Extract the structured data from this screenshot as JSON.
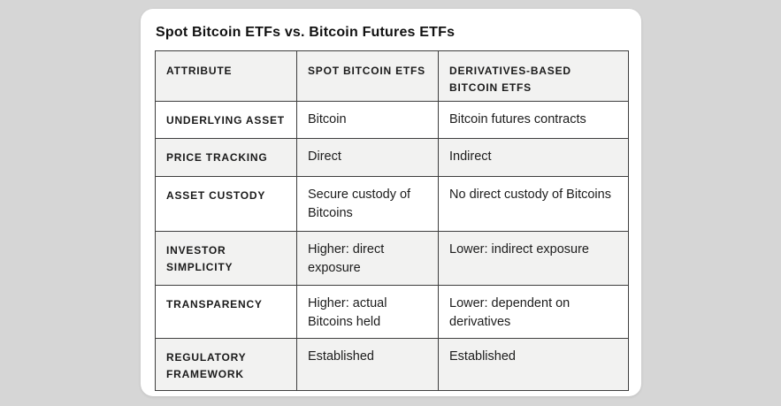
{
  "title": "Spot Bitcoin ETFs vs. Bitcoin Futures ETFs",
  "table": {
    "headers": [
      "ATTRIBUTE",
      "SPOT BITCOIN ETFS",
      "DERIVATIVES-BASED BITCOIN ETFS"
    ],
    "rows": [
      [
        "UNDERLYING ASSET",
        "Bitcoin",
        "Bitcoin futures contracts"
      ],
      [
        "PRICE TRACKING",
        "Direct",
        "Indirect"
      ],
      [
        "ASSET CUSTODY",
        "Secure custody of Bitcoins",
        "No direct custody of Bitcoins"
      ],
      [
        "INVESTOR SIMPLICITY",
        "Higher: direct exposure",
        "Lower: indirect exposure"
      ],
      [
        "TRANSPARENCY",
        "Higher: actual Bitcoins held",
        "Lower: dependent on derivatives"
      ],
      [
        "REGULATORY FRAMEWORK",
        "Established",
        "Established"
      ]
    ]
  },
  "colors": {
    "page_background": "#d6d6d6",
    "card_background": "#ffffff",
    "row_alt_background": "#f2f2f1",
    "border": "#3e3e3e",
    "text": "#1a1a1a"
  },
  "chart_data": {
    "type": "table",
    "title": "Spot Bitcoin ETFs vs. Bitcoin Futures ETFs",
    "columns": [
      "ATTRIBUTE",
      "SPOT BITCOIN ETFS",
      "DERIVATIVES-BASED BITCOIN ETFS"
    ],
    "rows": [
      {
        "attribute": "UNDERLYING ASSET",
        "spot_bitcoin_etfs": "Bitcoin",
        "derivatives_based_bitcoin_etfs": "Bitcoin futures contracts"
      },
      {
        "attribute": "PRICE TRACKING",
        "spot_bitcoin_etfs": "Direct",
        "derivatives_based_bitcoin_etfs": "Indirect"
      },
      {
        "attribute": "ASSET CUSTODY",
        "spot_bitcoin_etfs": "Secure custody of Bitcoins",
        "derivatives_based_bitcoin_etfs": "No direct custody of Bitcoins"
      },
      {
        "attribute": "INVESTOR SIMPLICITY",
        "spot_bitcoin_etfs": "Higher: direct exposure",
        "derivatives_based_bitcoin_etfs": "Lower: indirect exposure"
      },
      {
        "attribute": "TRANSPARENCY",
        "spot_bitcoin_etfs": "Higher: actual Bitcoins held",
        "derivatives_based_bitcoin_etfs": "Lower: dependent on derivatives"
      },
      {
        "attribute": "REGULATORY FRAMEWORK",
        "spot_bitcoin_etfs": "Established",
        "derivatives_based_bitcoin_etfs": "Established"
      }
    ],
    "layout": {
      "header_row_shaded": true,
      "alternating_rows": true,
      "grid": true
    }
  }
}
